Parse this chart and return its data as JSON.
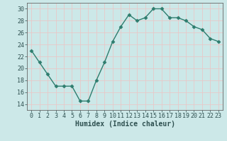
{
  "x": [
    0,
    1,
    2,
    3,
    4,
    5,
    6,
    7,
    8,
    9,
    10,
    11,
    12,
    13,
    14,
    15,
    16,
    17,
    18,
    19,
    20,
    21,
    22,
    23
  ],
  "y": [
    23,
    21,
    19,
    17,
    17,
    17,
    14.5,
    14.5,
    18,
    21,
    24.5,
    27,
    29,
    28,
    28.5,
    30,
    30,
    28.5,
    28.5,
    28,
    27,
    26.5,
    25,
    24.5
  ],
  "line_color": "#2e7d6e",
  "marker": "D",
  "marker_size": 2.5,
  "line_width": 1.0,
  "bg_color": "#cce8e8",
  "grid_color": "#e8c8c8",
  "xlabel": "Humidex (Indice chaleur)",
  "ylim": [
    13,
    31
  ],
  "xlim": [
    -0.5,
    23.5
  ],
  "yticks": [
    14,
    16,
    18,
    20,
    22,
    24,
    26,
    28,
    30
  ],
  "xticks": [
    0,
    1,
    2,
    3,
    4,
    5,
    6,
    7,
    8,
    9,
    10,
    11,
    12,
    13,
    14,
    15,
    16,
    17,
    18,
    19,
    20,
    21,
    22,
    23
  ],
  "xlabel_fontsize": 7.0,
  "tick_fontsize": 6.0,
  "tick_color": "#2e5050",
  "spine_color": "#666666"
}
